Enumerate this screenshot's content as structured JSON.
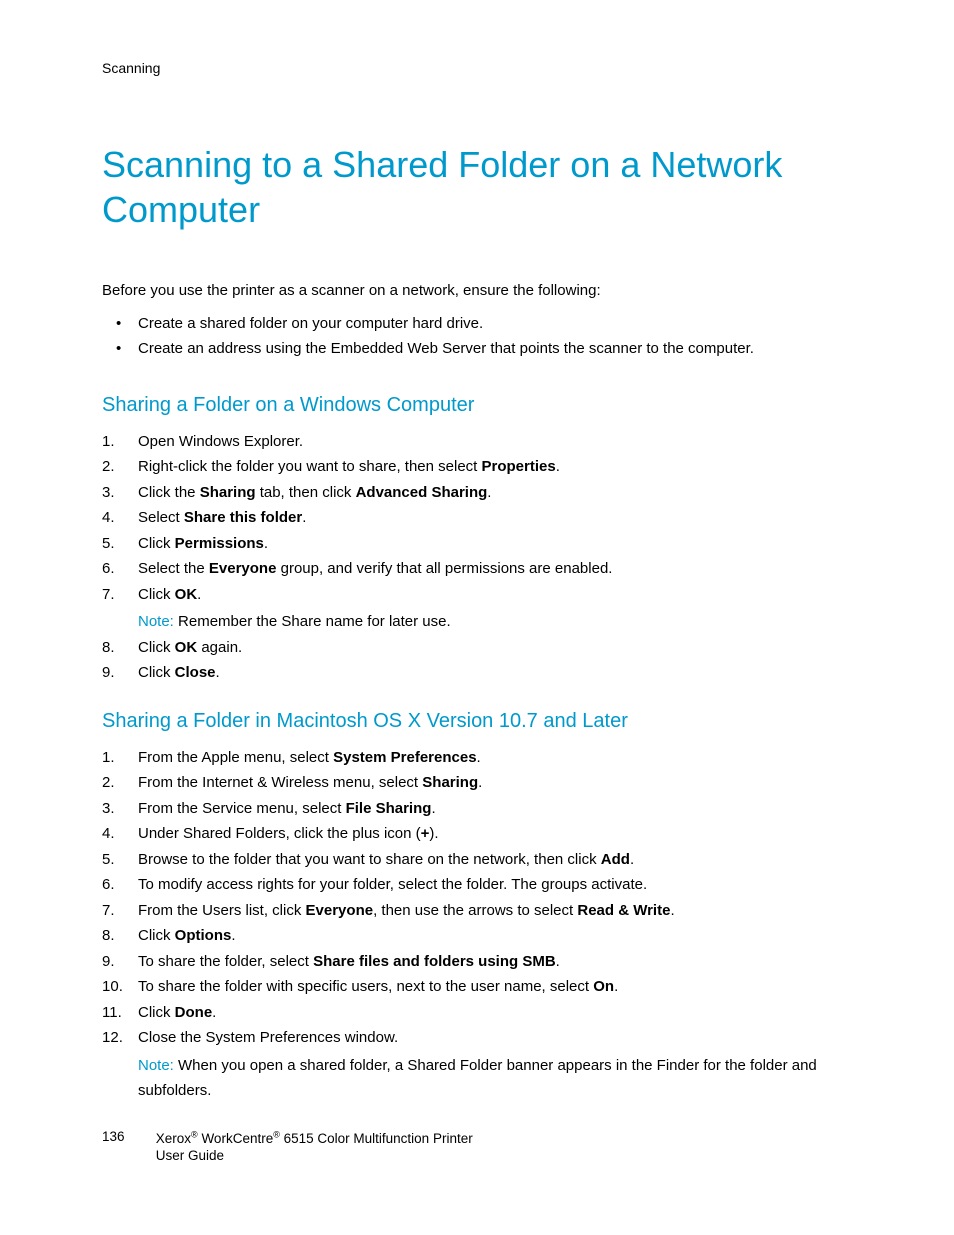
{
  "header": {
    "section_label": "Scanning"
  },
  "title": "Scanning to a Shared Folder on a Network Computer",
  "intro": "Before you use the printer as a scanner on a network, ensure the following:",
  "intro_bullets": [
    "Create a shared folder on your computer hard drive.",
    "Create an address using the Embedded Web Server that points the scanner to the computer."
  ],
  "section_windows": {
    "title": "Sharing a Folder on a Windows Computer",
    "steps": [
      [
        {
          "t": "Open Windows Explorer."
        }
      ],
      [
        {
          "t": "Right-click the folder you want to share, then select "
        },
        {
          "t": "Properties",
          "b": true
        },
        {
          "t": "."
        }
      ],
      [
        {
          "t": "Click the "
        },
        {
          "t": "Sharing",
          "b": true
        },
        {
          "t": " tab, then click "
        },
        {
          "t": "Advanced Sharing",
          "b": true
        },
        {
          "t": "."
        }
      ],
      [
        {
          "t": "Select "
        },
        {
          "t": "Share this folder",
          "b": true
        },
        {
          "t": "."
        }
      ],
      [
        {
          "t": "Click "
        },
        {
          "t": "Permissions",
          "b": true
        },
        {
          "t": "."
        }
      ],
      [
        {
          "t": "Select the "
        },
        {
          "t": "Everyone",
          "b": true
        },
        {
          "t": " group, and verify that all permissions are enabled."
        }
      ],
      [
        {
          "t": "Click "
        },
        {
          "t": "OK",
          "b": true
        },
        {
          "t": "."
        }
      ],
      [
        {
          "t": "Click "
        },
        {
          "t": "OK",
          "b": true
        },
        {
          "t": " again."
        }
      ],
      [
        {
          "t": "Click "
        },
        {
          "t": "Close",
          "b": true
        },
        {
          "t": "."
        }
      ]
    ],
    "note_after_step": 7,
    "note_label": "Note:",
    "note_text": " Remember the Share name for later use."
  },
  "section_mac": {
    "title": "Sharing a Folder in Macintosh OS X Version 10.7 and Later",
    "steps": [
      [
        {
          "t": "From the Apple menu, select "
        },
        {
          "t": "System Preferences",
          "b": true
        },
        {
          "t": "."
        }
      ],
      [
        {
          "t": "From the Internet & Wireless menu, select "
        },
        {
          "t": "Sharing",
          "b": true
        },
        {
          "t": "."
        }
      ],
      [
        {
          "t": "From the Service menu, select "
        },
        {
          "t": "File Sharing",
          "b": true
        },
        {
          "t": "."
        }
      ],
      [
        {
          "t": "Under Shared Folders, click the plus icon ("
        },
        {
          "t": "+",
          "b": true
        },
        {
          "t": ")."
        }
      ],
      [
        {
          "t": "Browse to the folder that you want to share on the network, then click "
        },
        {
          "t": "Add",
          "b": true
        },
        {
          "t": "."
        }
      ],
      [
        {
          "t": "To modify access rights for your folder, select the folder. The groups activate."
        }
      ],
      [
        {
          "t": "From the Users list, click "
        },
        {
          "t": "Everyone",
          "b": true
        },
        {
          "t": ", then use the arrows to select "
        },
        {
          "t": "Read & Write",
          "b": true
        },
        {
          "t": "."
        }
      ],
      [
        {
          "t": "Click "
        },
        {
          "t": "Options",
          "b": true
        },
        {
          "t": "."
        }
      ],
      [
        {
          "t": "To share the folder, select "
        },
        {
          "t": "Share files and folders using SMB",
          "b": true
        },
        {
          "t": "."
        }
      ],
      [
        {
          "t": "To share the folder with specific users, next to the user name, select "
        },
        {
          "t": "On",
          "b": true
        },
        {
          "t": "."
        }
      ],
      [
        {
          "t": "Click "
        },
        {
          "t": "Done",
          "b": true
        },
        {
          "t": "."
        }
      ],
      [
        {
          "t": "Close the System Preferences window."
        }
      ]
    ],
    "note_after_step": 12,
    "note_label": "Note:",
    "note_text": " When you open a shared folder, a Shared Folder banner appears in the Finder for the folder and subfolders."
  },
  "footer": {
    "page_number": "136",
    "product_line1_pre": "Xerox",
    "product_line1_mid": " WorkCentre",
    "product_line1_post": " 6515 Color Multifunction Printer",
    "product_line2": "User Guide",
    "reg": "®"
  },
  "colors": {
    "accent": "#0099cc",
    "text": "#000000",
    "background": "#ffffff"
  },
  "typography": {
    "title_fontsize": 36,
    "section_title_fontsize": 20,
    "body_fontsize": 15,
    "header_fontsize": 14,
    "footer_fontsize": 13.5
  }
}
